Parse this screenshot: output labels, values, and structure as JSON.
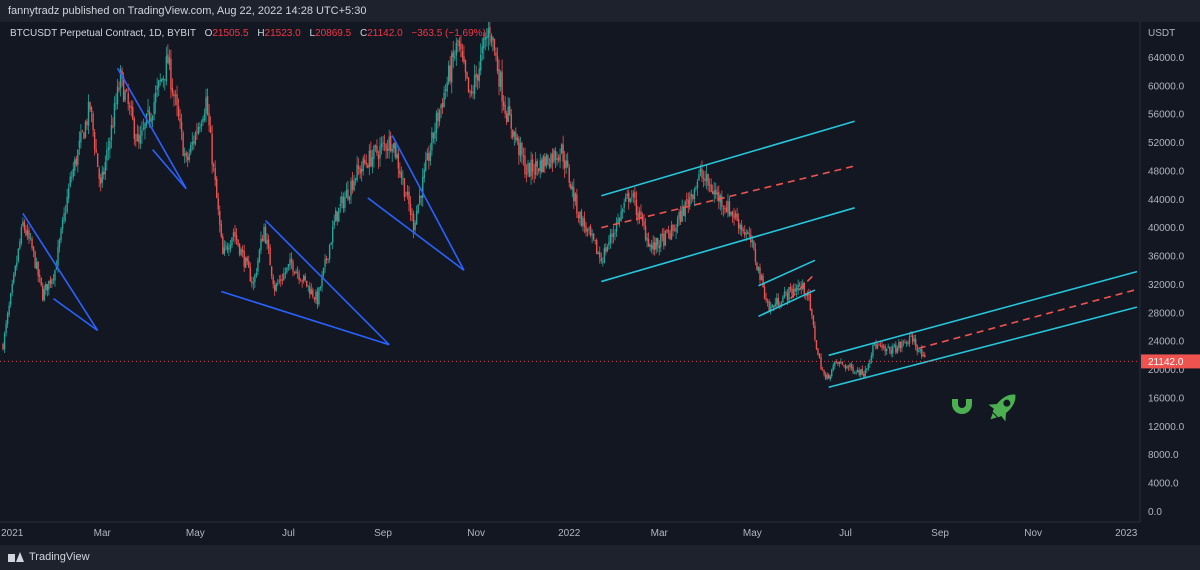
{
  "header": {
    "publisher_text": "fannytradz published on TradingView.com, Aug 22, 2022 14:28 UTC+5:30"
  },
  "legend": {
    "symbol": "BTCUSDT Perpetual Contract, 1D, BYBIT",
    "o_label": "O",
    "o_value": "21505.5",
    "h_label": "H",
    "h_value": "21523.0",
    "l_label": "L",
    "l_value": "20869.5",
    "c_label": "C",
    "c_value": "21142.0",
    "change": "−363.5 (−1.69%)"
  },
  "footer": {
    "brand": "TradingView"
  },
  "colors": {
    "background": "#131722",
    "up": "#26a69a",
    "down": "#ef5350",
    "wedge": "#2962ff",
    "channel": "#26c6da",
    "midline": "#ef5350",
    "price_line": "#ef5350",
    "icon_green": "#4caf50"
  },
  "icons": [
    "magnet-icon",
    "rocket-icon"
  ],
  "chart_data": {
    "type": "candlestick",
    "symbol": "BTCUSDT Perpetual Contract",
    "interval": "1D",
    "exchange": "BYBIT",
    "y_axis_unit": "USDT",
    "y_ticks": [
      0,
      4000,
      8000,
      12000,
      16000,
      20000,
      24000,
      28000,
      32000,
      36000,
      40000,
      44000,
      48000,
      52000,
      56000,
      60000,
      64000
    ],
    "y_tick_labels": [
      "0.0",
      "4000.0",
      "8000.0",
      "12000.0",
      "16000.0",
      "20000.0",
      "24000.0",
      "28000.0",
      "32000.0",
      "36000.0",
      "40000.0",
      "44000.0",
      "48000.0",
      "52000.0",
      "56000.0",
      "60000.0",
      "64000.0"
    ],
    "ylim": [
      -1500,
      69000
    ],
    "x_range": [
      "2020-12-24",
      "2023-01-10"
    ],
    "x_ticks": [
      {
        "date": "2021-01-01",
        "label": "2021"
      },
      {
        "date": "2021-03-01",
        "label": "Mar"
      },
      {
        "date": "2021-05-01",
        "label": "May"
      },
      {
        "date": "2021-07-01",
        "label": "Jul"
      },
      {
        "date": "2021-09-01",
        "label": "Sep"
      },
      {
        "date": "2021-11-01",
        "label": "Nov"
      },
      {
        "date": "2022-01-01",
        "label": "2022"
      },
      {
        "date": "2022-03-01",
        "label": "Mar"
      },
      {
        "date": "2022-05-01",
        "label": "May"
      },
      {
        "date": "2022-07-01",
        "label": "Jul"
      },
      {
        "date": "2022-09-01",
        "label": "Sep"
      },
      {
        "date": "2022-11-01",
        "label": "Nov"
      },
      {
        "date": "2023-01-01",
        "label": "2023"
      }
    ],
    "last_price": 21142.0,
    "last_price_label": "21142.0",
    "price_path": [
      [
        "2020-12-26",
        23500
      ],
      [
        "2021-01-08",
        40500
      ],
      [
        "2021-01-14",
        37000
      ],
      [
        "2021-01-21",
        30500
      ],
      [
        "2021-01-29",
        34000
      ],
      [
        "2021-02-08",
        46500
      ],
      [
        "2021-02-21",
        57000
      ],
      [
        "2021-02-28",
        45500
      ],
      [
        "2021-03-13",
        61000
      ],
      [
        "2021-03-25",
        51500
      ],
      [
        "2021-04-13",
        63500
      ],
      [
        "2021-04-25",
        49000
      ],
      [
        "2021-05-08",
        58000
      ],
      [
        "2021-05-19",
        36000
      ],
      [
        "2021-05-26",
        39500
      ],
      [
        "2021-06-08",
        32000
      ],
      [
        "2021-06-15",
        40000
      ],
      [
        "2021-06-22",
        31500
      ],
      [
        "2021-07-03",
        35000
      ],
      [
        "2021-07-20",
        29800
      ],
      [
        "2021-08-01",
        41500
      ],
      [
        "2021-08-14",
        47500
      ],
      [
        "2021-08-22",
        49500
      ],
      [
        "2021-09-07",
        52500
      ],
      [
        "2021-09-21",
        40500
      ],
      [
        "2021-10-06",
        55000
      ],
      [
        "2021-10-20",
        66000
      ],
      [
        "2021-10-28",
        58000
      ],
      [
        "2021-11-10",
        68500
      ],
      [
        "2021-11-20",
        57000
      ],
      [
        "2021-12-04",
        48000
      ],
      [
        "2021-12-10",
        48500
      ],
      [
        "2021-12-27",
        51000
      ],
      [
        "2022-01-07",
        42000
      ],
      [
        "2022-01-22",
        35500
      ],
      [
        "2022-02-10",
        45000
      ],
      [
        "2022-02-24",
        37000
      ],
      [
        "2022-03-10",
        39500
      ],
      [
        "2022-03-28",
        47500
      ],
      [
        "2022-04-06",
        45000
      ],
      [
        "2022-04-20",
        41500
      ],
      [
        "2022-04-30",
        38000
      ],
      [
        "2022-05-12",
        28500
      ],
      [
        "2022-05-20",
        30000
      ],
      [
        "2022-05-31",
        31800
      ],
      [
        "2022-06-06",
        31000
      ],
      [
        "2022-06-13",
        22000
      ],
      [
        "2022-06-18",
        18500
      ],
      [
        "2022-06-25",
        21000
      ],
      [
        "2022-07-13",
        19500
      ],
      [
        "2022-07-20",
        23500
      ],
      [
        "2022-07-27",
        22600
      ],
      [
        "2022-08-03",
        23000
      ],
      [
        "2022-08-14",
        24400
      ],
      [
        "2022-08-22",
        21142
      ]
    ],
    "drawings": {
      "wedges": [
        {
          "p1": [
            "2021-01-08",
            42000
          ],
          "p2": [
            "2021-01-28",
            30000
          ],
          "apex": [
            "2021-02-26",
            25500
          ]
        },
        {
          "p1": [
            "2021-03-11",
            62500
          ],
          "p2": [
            "2021-04-03",
            51000
          ],
          "apex": [
            "2021-04-25",
            45500
          ]
        },
        {
          "p1": [
            "2021-06-16",
            41000
          ],
          "p2": [
            "2021-05-18",
            31000
          ],
          "apex": [
            "2021-09-05",
            23500
          ]
        },
        {
          "p1": [
            "2021-09-07",
            53000
          ],
          "p2": [
            "2021-08-22",
            44200
          ],
          "apex": [
            "2021-10-24",
            34000
          ]
        }
      ],
      "channels": [
        {
          "upper": [
            [
              "2022-01-22",
              44500
            ],
            [
              "2022-07-07",
              55000
            ]
          ],
          "mid": [
            [
              "2022-01-22",
              40000
            ],
            [
              "2022-07-07",
              48700
            ]
          ],
          "lower": [
            [
              "2022-01-22",
              32400
            ],
            [
              "2022-07-07",
              42800
            ]
          ]
        },
        {
          "upper": [
            [
              "2022-05-05",
              31800
            ],
            [
              "2022-06-11",
              35400
            ]
          ],
          "mid": [
            [
              "2022-05-26",
              30000
            ],
            [
              "2022-06-11",
              33500
            ]
          ],
          "lower": [
            [
              "2022-05-05",
              27500
            ],
            [
              "2022-06-11",
              31200
            ]
          ]
        },
        {
          "upper": [
            [
              "2022-06-20",
              22000
            ],
            [
              "2023-01-08",
              33800
            ]
          ],
          "mid": [
            [
              "2022-08-18",
              23000
            ],
            [
              "2023-01-08",
              31300
            ]
          ],
          "lower": [
            [
              "2022-06-20",
              17500
            ],
            [
              "2023-01-08",
              28800
            ]
          ]
        }
      ]
    }
  }
}
